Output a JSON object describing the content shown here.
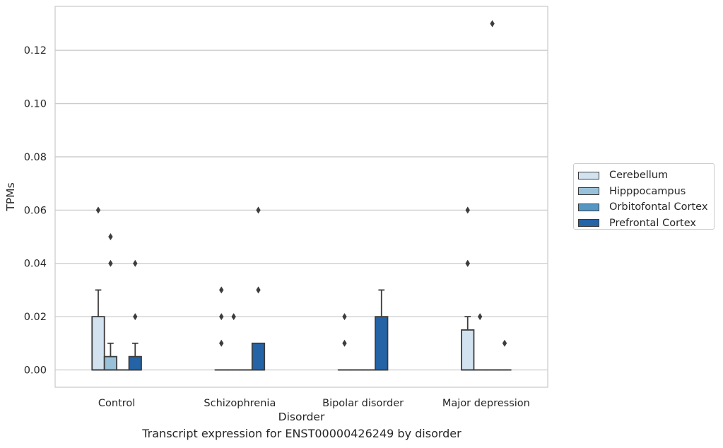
{
  "chart_data": {
    "type": "box",
    "title": "",
    "caption": "Transcript expression for ENST00000426249 by disorder",
    "xlabel": "Disorder",
    "ylabel": "TPMs",
    "ylim": [
      -0.0065,
      0.1365
    ],
    "yticks": [
      0.0,
      0.02,
      0.04,
      0.06,
      0.08,
      0.1,
      0.12
    ],
    "ytick_labels": [
      "0.00",
      "0.02",
      "0.04",
      "0.06",
      "0.08",
      "0.10",
      "0.12"
    ],
    "grid": "horizontal",
    "legend_position": "right",
    "categories": [
      "Control",
      "Schizophrenia",
      "Bipolar disorder",
      "Major depression"
    ],
    "series": [
      {
        "name": "Cerebellum",
        "color": "#d2e2ef",
        "boxes": [
          {
            "q1": 0.0,
            "median": 0.0,
            "q3": 0.02,
            "whisker_low": 0.0,
            "whisker_high": 0.03,
            "outliers": [
              0.06
            ]
          },
          {
            "q1": 0.0,
            "median": 0.0,
            "q3": 0.0,
            "whisker_low": 0.0,
            "whisker_high": 0.0,
            "outliers": [
              0.01,
              0.02,
              0.03
            ]
          },
          {
            "q1": 0.0,
            "median": 0.0,
            "q3": 0.0,
            "whisker_low": 0.0,
            "whisker_high": 0.0,
            "outliers": [
              0.01,
              0.02
            ]
          },
          {
            "q1": 0.0,
            "median": 0.0,
            "q3": 0.015,
            "whisker_low": 0.0,
            "whisker_high": 0.02,
            "outliers": [
              0.04,
              0.04,
              0.06
            ]
          }
        ]
      },
      {
        "name": "Hipppocampus",
        "color": "#9ac1da",
        "boxes": [
          {
            "q1": 0.0,
            "median": 0.0,
            "q3": 0.005,
            "whisker_low": 0.0,
            "whisker_high": 0.01,
            "outliers": [
              0.04,
              0.05
            ]
          },
          {
            "q1": 0.0,
            "median": 0.0,
            "q3": 0.0,
            "whisker_low": 0.0,
            "whisker_high": 0.0,
            "outliers": [
              0.02
            ]
          },
          {
            "q1": 0.0,
            "median": 0.0,
            "q3": 0.0,
            "whisker_low": 0.0,
            "whisker_high": 0.0,
            "outliers": []
          },
          {
            "q1": 0.0,
            "median": 0.0,
            "q3": 0.0,
            "whisker_low": 0.0,
            "whisker_high": 0.0,
            "outliers": [
              0.02
            ]
          }
        ]
      },
      {
        "name": "Orbitofontal Cortex",
        "color": "#5497c5",
        "boxes": [
          {
            "q1": 0.0,
            "median": 0.0,
            "q3": 0.0,
            "whisker_low": 0.0,
            "whisker_high": 0.0,
            "outliers": []
          },
          {
            "q1": 0.0,
            "median": 0.0,
            "q3": 0.0,
            "whisker_low": 0.0,
            "whisker_high": 0.0,
            "outliers": []
          },
          {
            "q1": 0.0,
            "median": 0.0,
            "q3": 0.0,
            "whisker_low": 0.0,
            "whisker_high": 0.0,
            "outliers": []
          },
          {
            "q1": 0.0,
            "median": 0.0,
            "q3": 0.0,
            "whisker_low": 0.0,
            "whisker_high": 0.0,
            "outliers": [
              0.13
            ]
          }
        ]
      },
      {
        "name": "Prefrontal Cortex",
        "color": "#2363a6",
        "boxes": [
          {
            "q1": 0.0,
            "median": 0.0,
            "q3": 0.005,
            "whisker_low": 0.0,
            "whisker_high": 0.01,
            "outliers": [
              0.02,
              0.04
            ]
          },
          {
            "q1": 0.0,
            "median": 0.0,
            "q3": 0.01,
            "whisker_low": 0.0,
            "whisker_high": 0.01,
            "outliers": [
              0.03,
              0.06
            ]
          },
          {
            "q1": 0.0,
            "median": 0.0,
            "q3": 0.02,
            "whisker_low": 0.0,
            "whisker_high": 0.03,
            "outliers": []
          },
          {
            "q1": 0.0,
            "median": 0.0,
            "q3": 0.0,
            "whisker_low": 0.0,
            "whisker_high": 0.0,
            "outliers": [
              0.01
            ]
          }
        ]
      }
    ]
  }
}
